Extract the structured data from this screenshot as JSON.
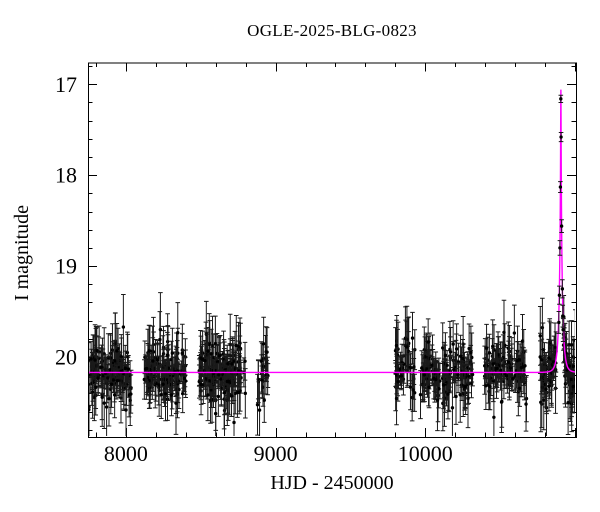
{
  "figure": {
    "title": "OGLE-2025-BLG-0823",
    "xlabel": "HJD - 2450000",
    "ylabel": "I magnitude"
  },
  "chart_data": {
    "type": "scatter",
    "title": "OGLE-2025-BLG-0823",
    "xlabel": "HJD - 2450000",
    "ylabel": "I magnitude",
    "x_axis": {
      "lim": [
        7747,
        11007
      ],
      "major_tick_step": 1000,
      "major_ticks": [
        8000,
        9000,
        10000,
        11000
      ],
      "labeled_ticks": [
        "8000",
        "9000",
        "10000"
      ],
      "minor_tick_step": 200
    },
    "y_axis": {
      "lim_top_to_bottom": [
        16.76,
        20.88
      ],
      "major_ticks": [
        17,
        18,
        19,
        20
      ],
      "labeled_ticks": [
        "17",
        "18",
        "19",
        "20"
      ],
      "minor_tick_step": 0.2,
      "inverted_magnitude_scale": true
    },
    "grid": false,
    "legend": null,
    "colors": {
      "data_points": "#000000",
      "error_bars": "#1a1a1a",
      "model_curve": "#ff00ff",
      "axes": "#000000",
      "background": "#ffffff"
    },
    "model": {
      "type": "paczynski_microlensing",
      "t0": 10906,
      "tE_days": 22,
      "u0": 0.057,
      "baseline_I0_mag": 20.17,
      "peak_mag": 17.06
    },
    "scatter_sigma_mag": 0.16,
    "typical_error_bar_mag": 0.18,
    "seasons": [
      {
        "t_start": 7750,
        "t_end": 8035,
        "n_points": 125
      },
      {
        "t_start": 8123,
        "t_end": 8400,
        "n_points": 135
      },
      {
        "t_start": 8490,
        "t_end": 8800,
        "n_points": 155
      },
      {
        "t_start": 8878,
        "t_end": 8950,
        "n_points": 22
      },
      {
        "t_start": 9800,
        "t_end": 9935,
        "n_points": 45
      },
      {
        "t_start": 9968,
        "t_end": 10100,
        "n_points": 55
      },
      {
        "t_start": 10115,
        "t_end": 10320,
        "n_points": 75
      },
      {
        "t_start": 10390,
        "t_end": 10680,
        "n_points": 100
      },
      {
        "t_start": 10768,
        "t_end": 10876,
        "n_points": 60
      },
      {
        "t_start": 10922,
        "t_end": 11005,
        "n_points": 50
      }
    ],
    "peak_points": [
      [
        10905.6,
        17.16,
        0.04
      ],
      [
        10907.3,
        17.58,
        0.05
      ],
      [
        10902.8,
        18.13,
        0.06
      ],
      [
        10910.9,
        18.56,
        0.07
      ],
      [
        10899.7,
        18.8,
        0.08
      ],
      [
        10915.9,
        19.25,
        0.1
      ],
      [
        10896.2,
        19.32,
        0.1
      ],
      [
        10918.5,
        19.55,
        0.12
      ],
      [
        10892.5,
        19.62,
        0.12
      ],
      [
        10921.0,
        19.7,
        0.13
      ]
    ],
    "random_seed": 7
  }
}
